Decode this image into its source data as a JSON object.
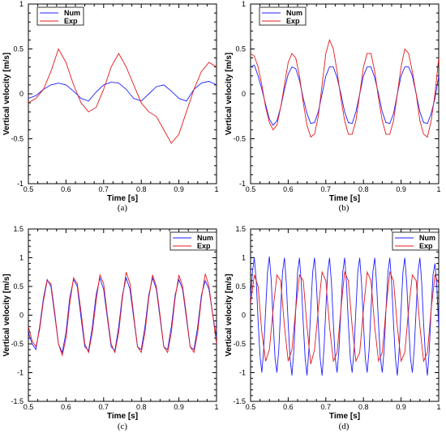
{
  "chart_data": [
    {
      "type": "line",
      "panel_label": "(a)",
      "xlabel": "Time [s]",
      "ylabel": "Vertical velocity [m/s]",
      "xlim": [
        0.5,
        1.0
      ],
      "ylim": [
        -1,
        1
      ],
      "xticks": [
        0.5,
        0.6,
        0.7,
        0.8,
        0.9,
        1
      ],
      "xtick_labels": [
        "0.5",
        "0.6",
        "0.7",
        "0.8",
        "0.9",
        "1"
      ],
      "yticks": [
        -1,
        -0.5,
        0,
        0.5,
        1
      ],
      "ytick_labels": [
        "-1",
        "-0.5",
        "0",
        "0.5",
        "1"
      ],
      "grid": false,
      "legend_position": "top-left",
      "series": [
        {
          "name": "Num",
          "color": "#1f1fff",
          "x": [
            0.5,
            0.52,
            0.54,
            0.56,
            0.58,
            0.6,
            0.62,
            0.64,
            0.66,
            0.68,
            0.7,
            0.72,
            0.74,
            0.76,
            0.78,
            0.8,
            0.82,
            0.84,
            0.86,
            0.88,
            0.9,
            0.92,
            0.94,
            0.96,
            0.98,
            1.0
          ],
          "y": [
            -0.05,
            -0.02,
            0.05,
            0.1,
            0.12,
            0.1,
            0.03,
            -0.05,
            -0.08,
            0.02,
            0.1,
            0.13,
            0.12,
            0.05,
            -0.05,
            -0.08,
            0.0,
            0.08,
            0.1,
            0.03,
            -0.05,
            -0.08,
            0.05,
            0.12,
            0.14,
            0.1
          ]
        },
        {
          "name": "Exp",
          "color": "#e41a1c",
          "x": [
            0.5,
            0.52,
            0.54,
            0.56,
            0.58,
            0.6,
            0.62,
            0.64,
            0.66,
            0.68,
            0.7,
            0.72,
            0.74,
            0.76,
            0.78,
            0.8,
            0.82,
            0.84,
            0.86,
            0.88,
            0.9,
            0.92,
            0.94,
            0.96,
            0.98,
            1.0
          ],
          "y": [
            -0.1,
            -0.05,
            0.05,
            0.25,
            0.5,
            0.35,
            0.1,
            -0.1,
            -0.2,
            -0.15,
            0.05,
            0.3,
            0.45,
            0.3,
            0.1,
            -0.1,
            -0.2,
            -0.25,
            -0.4,
            -0.55,
            -0.45,
            -0.2,
            0.05,
            0.25,
            0.35,
            0.3
          ]
        }
      ]
    },
    {
      "type": "line",
      "panel_label": "(b)",
      "xlabel": "Time [s]",
      "ylabel": "Vertical velocity [m/s]",
      "xlim": [
        0.5,
        1.0
      ],
      "ylim": [
        -1,
        1
      ],
      "xticks": [
        0.5,
        0.6,
        0.7,
        0.8,
        0.9,
        1
      ],
      "xtick_labels": [
        "0.5",
        "0.6",
        "0.7",
        "0.8",
        "0.9",
        "1"
      ],
      "yticks": [
        -1,
        -0.5,
        0,
        0.5,
        1
      ],
      "ytick_labels": [
        "-1",
        "-0.5",
        "0",
        "0.5",
        "1"
      ],
      "grid": false,
      "legend_position": "top-left",
      "series": [
        {
          "name": "Num",
          "color": "#1f1fff",
          "x": [
            0.5,
            0.51,
            0.52,
            0.53,
            0.54,
            0.55,
            0.56,
            0.57,
            0.58,
            0.59,
            0.6,
            0.61,
            0.62,
            0.63,
            0.64,
            0.65,
            0.66,
            0.67,
            0.68,
            0.69,
            0.7,
            0.71,
            0.72,
            0.73,
            0.74,
            0.75,
            0.76,
            0.77,
            0.78,
            0.79,
            0.8,
            0.81,
            0.82,
            0.83,
            0.84,
            0.85,
            0.86,
            0.87,
            0.88,
            0.89,
            0.9,
            0.91,
            0.92,
            0.93,
            0.94,
            0.95,
            0.96,
            0.97,
            0.98,
            0.99,
            1.0
          ],
          "y": [
            0.3,
            0.32,
            0.2,
            0.05,
            -0.12,
            -0.28,
            -0.35,
            -0.3,
            -0.15,
            0.05,
            0.22,
            0.3,
            0.28,
            0.15,
            -0.05,
            -0.22,
            -0.33,
            -0.32,
            -0.2,
            0.0,
            0.2,
            0.3,
            0.3,
            0.18,
            0.0,
            -0.2,
            -0.32,
            -0.33,
            -0.2,
            0.0,
            0.2,
            0.3,
            0.3,
            0.18,
            0.0,
            -0.2,
            -0.32,
            -0.33,
            -0.22,
            0.0,
            0.2,
            0.3,
            0.3,
            0.2,
            0.0,
            -0.2,
            -0.32,
            -0.33,
            -0.22,
            -0.05,
            0.2
          ]
        },
        {
          "name": "Exp",
          "color": "#e41a1c",
          "x": [
            0.5,
            0.51,
            0.52,
            0.53,
            0.54,
            0.55,
            0.56,
            0.57,
            0.58,
            0.59,
            0.6,
            0.61,
            0.62,
            0.63,
            0.64,
            0.65,
            0.66,
            0.67,
            0.68,
            0.69,
            0.7,
            0.71,
            0.72,
            0.73,
            0.74,
            0.75,
            0.76,
            0.77,
            0.78,
            0.79,
            0.8,
            0.81,
            0.82,
            0.83,
            0.84,
            0.85,
            0.86,
            0.87,
            0.88,
            0.89,
            0.9,
            0.91,
            0.92,
            0.93,
            0.94,
            0.95,
            0.96,
            0.97,
            0.98,
            0.99,
            1.0
          ],
          "y": [
            0.45,
            0.42,
            0.3,
            0.1,
            -0.15,
            -0.32,
            -0.4,
            -0.35,
            -0.15,
            0.1,
            0.35,
            0.45,
            0.4,
            0.2,
            -0.1,
            -0.35,
            -0.48,
            -0.45,
            -0.25,
            0.1,
            0.45,
            0.6,
            0.5,
            0.25,
            -0.05,
            -0.3,
            -0.45,
            -0.45,
            -0.3,
            0.0,
            0.3,
            0.45,
            0.45,
            0.25,
            -0.05,
            -0.3,
            -0.45,
            -0.45,
            -0.3,
            0.0,
            0.3,
            0.5,
            0.45,
            0.25,
            0.0,
            -0.3,
            -0.45,
            -0.48,
            -0.3,
            0.0,
            0.4
          ]
        }
      ]
    },
    {
      "type": "line",
      "panel_label": "(c)",
      "xlabel": "Time [s]",
      "ylabel": "Vertical velocity [m/s]",
      "xlim": [
        0.5,
        1.0
      ],
      "ylim": [
        -1.5,
        1.5
      ],
      "xticks": [
        0.5,
        0.6,
        0.7,
        0.8,
        0.9,
        1
      ],
      "xtick_labels": [
        "0.5",
        "0.6",
        "0.7",
        "0.8",
        "0.9",
        "1"
      ],
      "yticks": [
        -1.5,
        -1,
        -0.5,
        0,
        0.5,
        1,
        1.5
      ],
      "ytick_labels": [
        "-1.5",
        "-1",
        "-0.5",
        "0",
        "0.5",
        "1",
        "1.5"
      ],
      "grid": false,
      "legend_position": "top-right",
      "series": [
        {
          "name": "Num",
          "color": "#1f1fff",
          "x": [
            0.5,
            0.51,
            0.52,
            0.53,
            0.54,
            0.55,
            0.56,
            0.57,
            0.58,
            0.59,
            0.6,
            0.61,
            0.62,
            0.63,
            0.64,
            0.65,
            0.66,
            0.67,
            0.68,
            0.69,
            0.7,
            0.71,
            0.72,
            0.73,
            0.74,
            0.75,
            0.76,
            0.77,
            0.78,
            0.79,
            0.8,
            0.81,
            0.82,
            0.83,
            0.84,
            0.85,
            0.86,
            0.87,
            0.88,
            0.89,
            0.9,
            0.91,
            0.92,
            0.93,
            0.94,
            0.95,
            0.96,
            0.97,
            0.98,
            0.99,
            1.0
          ],
          "y": [
            -0.3,
            -0.5,
            -0.6,
            -0.2,
            0.3,
            0.62,
            0.5,
            0.0,
            -0.5,
            -0.65,
            -0.3,
            0.3,
            0.62,
            0.5,
            -0.05,
            -0.55,
            -0.62,
            -0.2,
            0.35,
            0.65,
            0.45,
            -0.05,
            -0.55,
            -0.62,
            -0.2,
            0.35,
            0.65,
            0.45,
            -0.05,
            -0.55,
            -0.6,
            -0.2,
            0.35,
            0.65,
            0.45,
            -0.05,
            -0.55,
            -0.6,
            -0.2,
            0.35,
            0.62,
            0.45,
            -0.05,
            -0.55,
            -0.6,
            -0.2,
            0.35,
            0.6,
            0.45,
            0.0,
            -0.4
          ]
        },
        {
          "name": "Exp",
          "color": "#e41a1c",
          "x": [
            0.5,
            0.51,
            0.52,
            0.53,
            0.54,
            0.55,
            0.56,
            0.57,
            0.58,
            0.59,
            0.6,
            0.61,
            0.62,
            0.63,
            0.64,
            0.65,
            0.66,
            0.67,
            0.68,
            0.69,
            0.7,
            0.71,
            0.72,
            0.73,
            0.74,
            0.75,
            0.76,
            0.77,
            0.78,
            0.79,
            0.8,
            0.81,
            0.82,
            0.83,
            0.84,
            0.85,
            0.86,
            0.87,
            0.88,
            0.89,
            0.9,
            0.91,
            0.92,
            0.93,
            0.94,
            0.95,
            0.96,
            0.97,
            0.98,
            0.99,
            1.0
          ],
          "y": [
            -0.2,
            -0.45,
            -0.55,
            -0.25,
            0.25,
            0.6,
            0.55,
            0.05,
            -0.5,
            -0.7,
            -0.4,
            0.2,
            0.65,
            0.55,
            0.05,
            -0.5,
            -0.65,
            -0.3,
            0.25,
            0.7,
            0.55,
            0.0,
            -0.5,
            -0.65,
            -0.3,
            0.3,
            0.75,
            0.55,
            0.0,
            -0.55,
            -0.65,
            -0.3,
            0.3,
            0.7,
            0.5,
            0.0,
            -0.55,
            -0.65,
            -0.3,
            0.3,
            0.7,
            0.5,
            0.0,
            -0.55,
            -0.65,
            -0.3,
            0.3,
            0.72,
            0.5,
            0.0,
            -0.5
          ]
        }
      ]
    },
    {
      "type": "line",
      "panel_label": "(d)",
      "xlabel": "Time [s]",
      "ylabel": "Vertical velocity [m/s]",
      "xlim": [
        0.5,
        1.0
      ],
      "ylim": [
        -1.5,
        1.5
      ],
      "xticks": [
        0.5,
        0.6,
        0.7,
        0.8,
        0.9,
        1
      ],
      "xtick_labels": [
        "0.5",
        "0.6",
        "0.7",
        "0.8",
        "0.9",
        "1"
      ],
      "yticks": [
        -1.5,
        -1,
        -0.5,
        0,
        0.5,
        1,
        1.5
      ],
      "ytick_labels": [
        "-1.5",
        "-1",
        "-0.5",
        "0",
        "0.5",
        "1",
        "1.5"
      ],
      "grid": false,
      "legend_position": "top-right",
      "series": [
        {
          "name": "Num",
          "color": "#1f1fff",
          "x": [
            0.5,
            0.505,
            0.51,
            0.515,
            0.52,
            0.525,
            0.53,
            0.535,
            0.54,
            0.545,
            0.55,
            0.555,
            0.56,
            0.565,
            0.57,
            0.575,
            0.58,
            0.585,
            0.59,
            0.595,
            0.6,
            0.605,
            0.61,
            0.615,
            0.62,
            0.625,
            0.63,
            0.635,
            0.64,
            0.645,
            0.65,
            0.655,
            0.66,
            0.665,
            0.67,
            0.675,
            0.68,
            0.685,
            0.69,
            0.695,
            0.7,
            0.705,
            0.71,
            0.715,
            0.72,
            0.725,
            0.73,
            0.735,
            0.74,
            0.745,
            0.75,
            0.755,
            0.76,
            0.765,
            0.77,
            0.775,
            0.78,
            0.785,
            0.79,
            0.795,
            0.8,
            0.805,
            0.81,
            0.815,
            0.82,
            0.825,
            0.83,
            0.835,
            0.84,
            0.845,
            0.85,
            0.855,
            0.86,
            0.865,
            0.87,
            0.875,
            0.88,
            0.885,
            0.89,
            0.895,
            0.9,
            0.905,
            0.91,
            0.915,
            0.92,
            0.925,
            0.93,
            0.935,
            0.94,
            0.945,
            0.95,
            0.955,
            0.96,
            0.965,
            0.97,
            0.975,
            0.98,
            0.985,
            0.99,
            0.995,
            1.0
          ],
          "y": [
            0.3,
            0.75,
            1.0,
            0.6,
            -0.1,
            -0.7,
            -1.0,
            -0.6,
            0.1,
            0.75,
            1.02,
            0.6,
            -0.1,
            -0.75,
            -1.0,
            -0.6,
            0.1,
            0.75,
            1.0,
            0.55,
            -0.15,
            -0.75,
            -1.05,
            -0.6,
            0.1,
            0.75,
            1.0,
            0.55,
            -0.15,
            -0.75,
            -1.05,
            -0.6,
            0.1,
            0.75,
            1.0,
            0.55,
            -0.15,
            -0.75,
            -1.05,
            -0.6,
            0.1,
            0.75,
            1.0,
            0.55,
            -0.15,
            -0.75,
            -1.0,
            -0.6,
            0.1,
            0.75,
            1.0,
            0.55,
            -0.15,
            -0.75,
            -1.0,
            -0.6,
            0.1,
            0.75,
            1.0,
            0.55,
            -0.15,
            -0.75,
            -1.0,
            -0.6,
            0.1,
            0.75,
            1.0,
            0.55,
            -0.15,
            -0.75,
            -1.0,
            -0.6,
            0.1,
            0.75,
            1.0,
            0.55,
            -0.15,
            -0.75,
            -1.05,
            -0.6,
            0.1,
            0.75,
            1.0,
            0.55,
            -0.15,
            -0.75,
            -1.0,
            -0.6,
            0.1,
            0.75,
            1.0,
            0.55,
            -0.15,
            -0.75,
            -1.05,
            -0.6,
            0.1,
            0.7,
            0.9,
            0.5,
            -0.2
          ]
        },
        {
          "name": "Exp",
          "color": "#e41a1c",
          "x": [
            0.5,
            0.51,
            0.52,
            0.53,
            0.54,
            0.55,
            0.56,
            0.57,
            0.58,
            0.59,
            0.6,
            0.61,
            0.62,
            0.63,
            0.64,
            0.65,
            0.66,
            0.67,
            0.68,
            0.69,
            0.7,
            0.71,
            0.72,
            0.73,
            0.74,
            0.75,
            0.76,
            0.77,
            0.78,
            0.79,
            0.8,
            0.81,
            0.82,
            0.83,
            0.84,
            0.85,
            0.86,
            0.87,
            0.88,
            0.89,
            0.9,
            0.91,
            0.92,
            0.93,
            0.94,
            0.95,
            0.96,
            0.97,
            0.98,
            0.99,
            1.0
          ],
          "y": [
            0.2,
            0.7,
            0.5,
            -0.3,
            -0.8,
            -0.6,
            0.1,
            0.7,
            0.6,
            -0.2,
            -0.8,
            -0.6,
            0.1,
            0.7,
            0.6,
            -0.2,
            -0.85,
            -0.6,
            0.1,
            0.75,
            0.6,
            -0.2,
            -0.8,
            -0.65,
            0.1,
            0.75,
            0.6,
            -0.2,
            -0.8,
            -0.65,
            0.1,
            0.75,
            0.6,
            -0.2,
            -0.8,
            -0.65,
            0.1,
            0.75,
            0.6,
            -0.2,
            -0.8,
            -0.65,
            0.1,
            0.7,
            0.6,
            -0.2,
            -0.8,
            -0.65,
            0.1,
            0.7,
            0.55
          ]
        }
      ]
    }
  ]
}
